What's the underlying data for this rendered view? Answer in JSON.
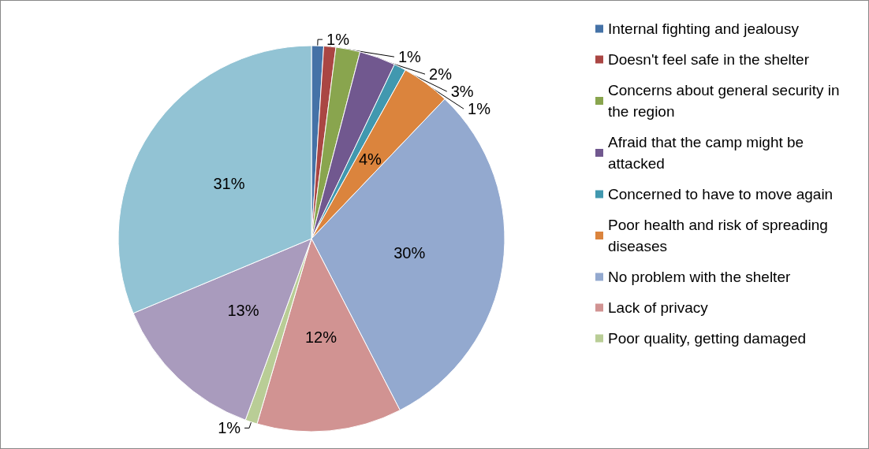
{
  "chart_data": {
    "type": "pie",
    "categories": [
      "Internal fighting and jealousy",
      "Doesn't feel safe in the shelter",
      "Concerns about general security in the region",
      "Afraid that the camp might be attacked",
      "Concerned to have to move again",
      "Poor health and risk of spreading diseases",
      "No problem with the shelter",
      "Lack of privacy",
      "Poor quality, getting damaged",
      null,
      null
    ],
    "values": [
      1,
      1,
      2,
      3,
      1,
      4,
      30,
      12,
      1,
      13,
      31
    ],
    "colors": [
      "#4572a7",
      "#aa4643",
      "#89a54e",
      "#71588f",
      "#4198af",
      "#db843d",
      "#93a9cf",
      "#d19392",
      "#b9cd96",
      "#a99bbd",
      "#92c3d4"
    ],
    "value_labels": [
      "1%",
      "1%",
      "2%",
      "3%",
      "1%",
      "4%",
      "30%",
      "12%",
      "1%",
      "13%",
      "31%"
    ],
    "legend": "right"
  }
}
